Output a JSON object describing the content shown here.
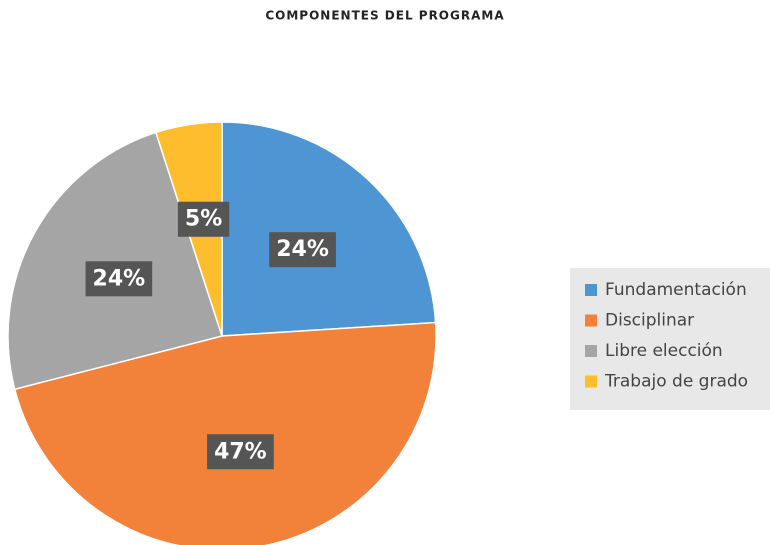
{
  "chart_data": {
    "type": "pie",
    "title": "COMPONENTES DEL PROGRAMA",
    "categories": [
      "Fundamentación",
      "Disciplinar",
      "Libre elección",
      "Trabajo de grado"
    ],
    "values": [
      24,
      47,
      24,
      5
    ],
    "value_labels": [
      "24%",
      "47%",
      "24%",
      "5%"
    ],
    "colors": [
      "#4e95d4",
      "#f2823a",
      "#a5a5a5",
      "#fdbd2c"
    ],
    "legend": "right"
  }
}
